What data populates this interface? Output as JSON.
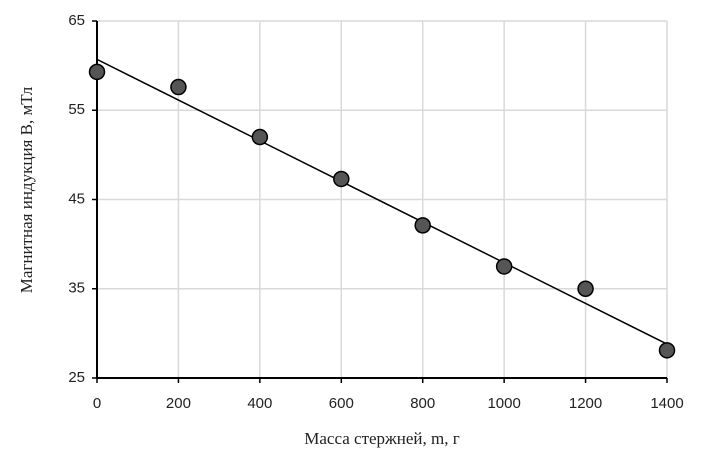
{
  "chart_data": {
    "type": "scatter",
    "x_label": "Масса стержней, m, г",
    "y_label": "Магнитная индукция B, мТл",
    "series": [
      {
        "x": [
          0,
          200,
          400,
          600,
          800,
          1000,
          1200,
          1400
        ],
        "values": [
          59.3,
          57.6,
          52.0,
          47.3,
          42.1,
          37.5,
          35.0,
          28.1
        ],
        "color": "#555555"
      }
    ],
    "trendline": {
      "x": [
        0,
        1400
      ],
      "values": [
        60.7,
        28.8
      ],
      "color": "#000000"
    },
    "xlim": [
      0,
      1400
    ],
    "xticks": [
      0,
      200,
      400,
      600,
      800,
      1000,
      1200,
      1400
    ],
    "ylim": [
      25,
      65
    ],
    "yticks": [
      25,
      35,
      45,
      55,
      65
    ],
    "grid": true
  }
}
